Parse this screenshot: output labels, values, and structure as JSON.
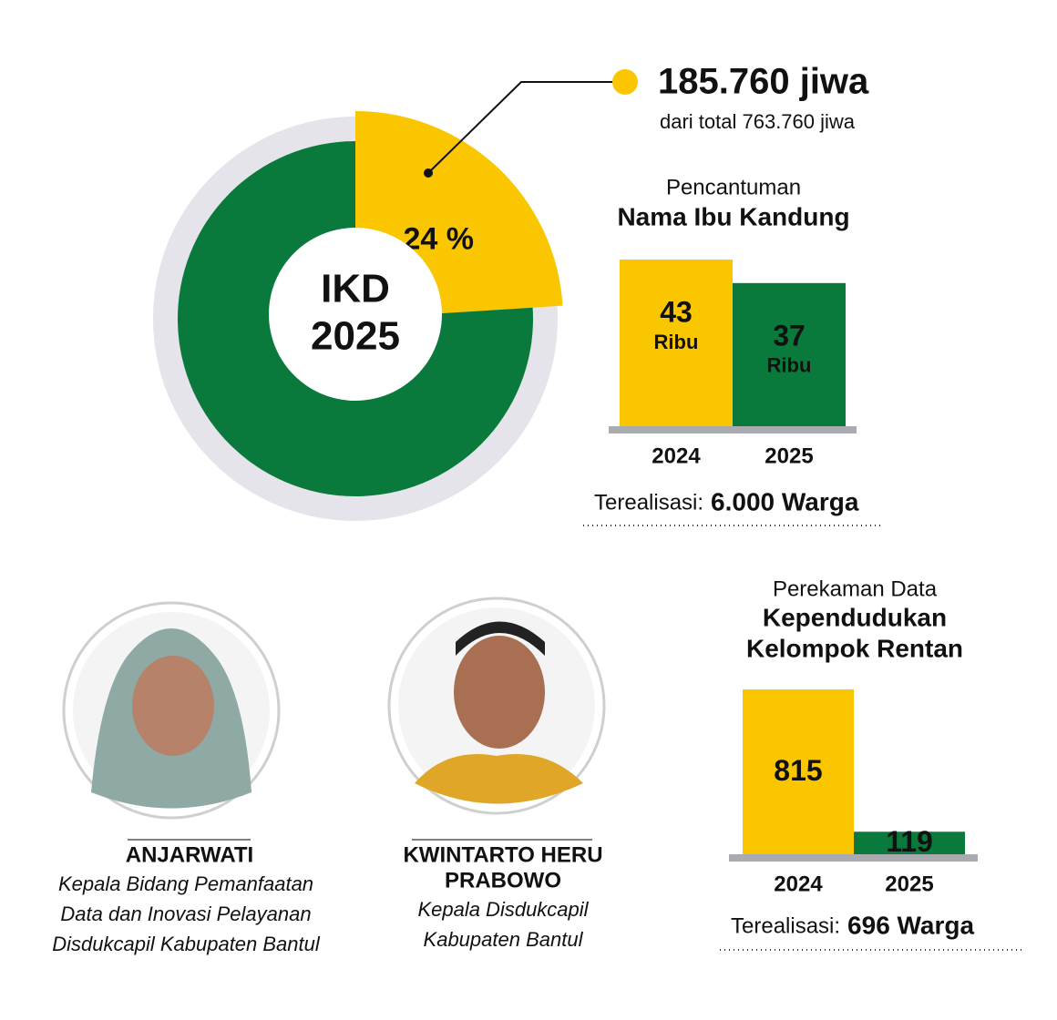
{
  "chart_data": [
    {
      "type": "pie",
      "center_text": [
        "IKD",
        "2025"
      ],
      "values": [
        24,
        76
      ],
      "value_labels": [
        "24 %",
        null
      ],
      "colors": [
        "#f9c600",
        "#0a7a3c"
      ],
      "annotations": [
        "185.760 jiwa",
        "dari total 763.760 jiwa"
      ]
    },
    {
      "type": "bar",
      "subtitle": "Pencantuman",
      "title": [
        "Nama Ibu Kandung"
      ],
      "categories": [
        "2024",
        "2025"
      ],
      "values": [
        43,
        37
      ],
      "unit": "Ribu",
      "colors": [
        "#f9c600",
        "#0a7a3c"
      ],
      "note_label": "Terealisasi:",
      "note_value": "6.000 Warga"
    },
    {
      "type": "bar",
      "subtitle": "Perekaman Data",
      "title": [
        "Kependudukan",
        "Kelompok Rentan"
      ],
      "categories": [
        "2024",
        "2025"
      ],
      "values": [
        815,
        119
      ],
      "colors": [
        "#f9c600",
        "#0a7a3c"
      ],
      "note_label": "Terealisasi:",
      "note_value": "696 Warga"
    }
  ],
  "profiles": [
    {
      "name": [
        "ANJARWATI"
      ],
      "role": [
        "Kepala Bidang Pemanfaatan",
        "Data dan Inovasi Pelayanan",
        "Disdukcapil Kabupaten Bantul"
      ]
    },
    {
      "name": [
        "KWINTARTO HERU",
        "PRABOWO"
      ],
      "role": [
        "Kepala Disdukcapil",
        "Kabupaten Bantul"
      ]
    }
  ]
}
